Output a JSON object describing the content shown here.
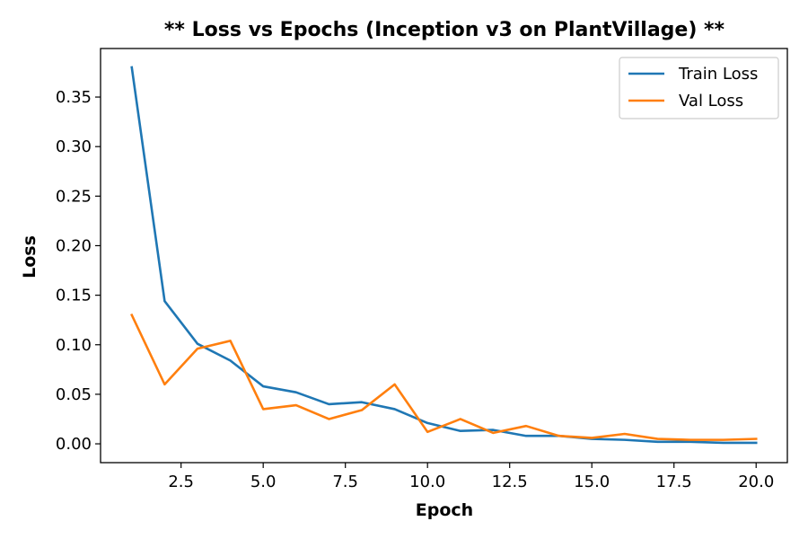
{
  "chart_data": {
    "type": "line",
    "title": "** Loss vs Epochs (Inception v3 on PlantVillage) **",
    "xlabel": "Epoch",
    "ylabel": "Loss",
    "xlim": [
      0.05,
      20.95
    ],
    "ylim": [
      -0.019,
      0.399
    ],
    "xticks": [
      2.5,
      5.0,
      7.5,
      10.0,
      12.5,
      15.0,
      17.5,
      20.0
    ],
    "xtick_labels": [
      "2.5",
      "5.0",
      "7.5",
      "10.0",
      "12.5",
      "15.0",
      "17.5",
      "20.0"
    ],
    "yticks": [
      0.0,
      0.05,
      0.1,
      0.15,
      0.2,
      0.25,
      0.3,
      0.35
    ],
    "ytick_labels": [
      "0.00",
      "0.05",
      "0.10",
      "0.15",
      "0.20",
      "0.25",
      "0.30",
      "0.35"
    ],
    "grid": false,
    "legend_position": "top-right",
    "x": [
      1,
      2,
      3,
      4,
      5,
      6,
      7,
      8,
      9,
      10,
      11,
      12,
      13,
      14,
      15,
      16,
      17,
      18,
      19,
      20
    ],
    "series": [
      {
        "name": "Train Loss",
        "color": "#1f77b4",
        "values": [
          0.38,
          0.144,
          0.101,
          0.084,
          0.058,
          0.052,
          0.04,
          0.042,
          0.035,
          0.021,
          0.013,
          0.014,
          0.008,
          0.008,
          0.005,
          0.004,
          0.002,
          0.002,
          0.001,
          0.001
        ]
      },
      {
        "name": "Val Loss",
        "color": "#ff7f0e",
        "values": [
          0.13,
          0.06,
          0.096,
          0.104,
          0.035,
          0.039,
          0.025,
          0.034,
          0.06,
          0.012,
          0.025,
          0.011,
          0.018,
          0.008,
          0.006,
          0.01,
          0.005,
          0.004,
          0.004,
          0.005
        ]
      }
    ]
  }
}
